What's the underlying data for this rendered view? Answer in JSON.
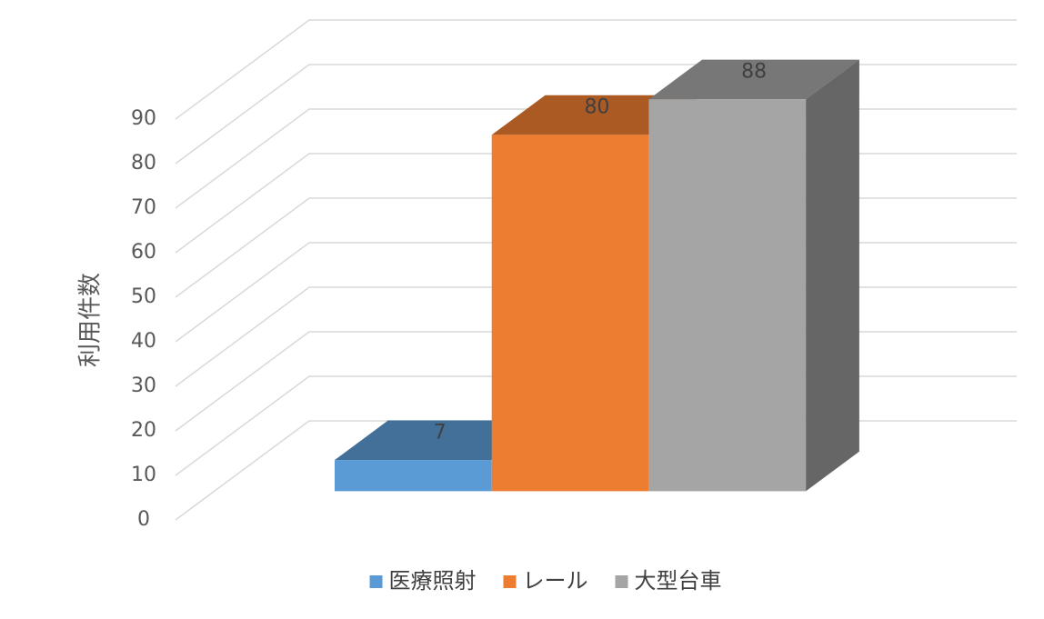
{
  "chart_data": {
    "type": "bar3d",
    "y_label": "利用件数",
    "series": [
      {
        "name": "医療照射",
        "color": "#5b9bd5",
        "values": [
          7
        ]
      },
      {
        "name": "レール",
        "color": "#ed7d31",
        "values": [
          80
        ]
      },
      {
        "name": "大型台車",
        "color": "#a5a5a5",
        "values": [
          88
        ]
      }
    ],
    "ylim": [
      0,
      90
    ],
    "yticks": [
      0,
      10,
      20,
      30,
      40,
      50,
      60,
      70,
      80,
      90
    ],
    "grid": true,
    "legend": "bottom"
  }
}
